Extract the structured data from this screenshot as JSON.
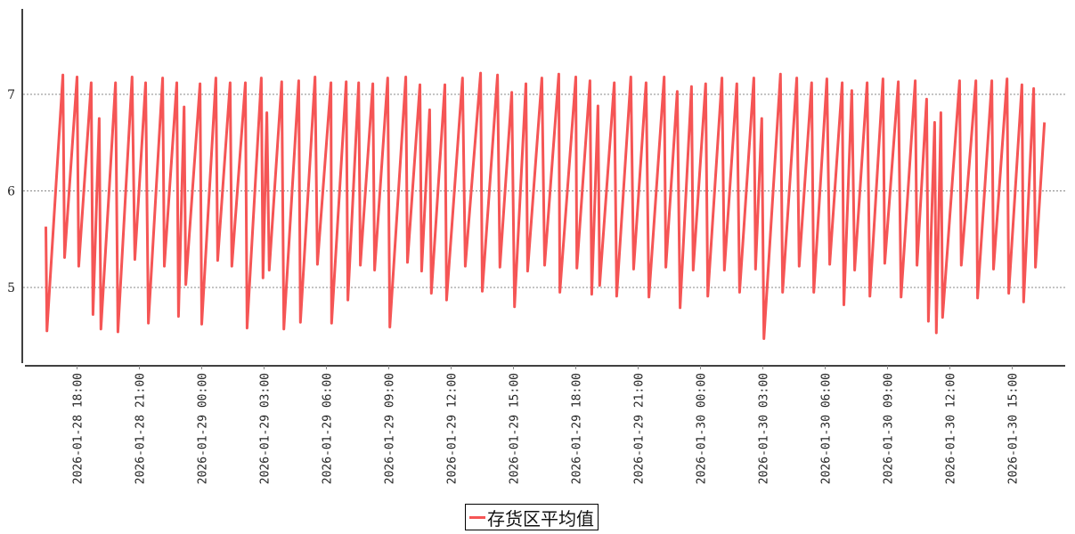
{
  "chart_data": {
    "type": "line",
    "title": "",
    "xlabel": "",
    "ylabel": "",
    "ylim": [
      4.2,
      7.88
    ],
    "xlim": [
      "2026-01-28 16:00",
      "2026-01-30 17:50"
    ],
    "grid": {
      "y": true,
      "x": false,
      "style": "dotted"
    },
    "legend_position": "bottom-center",
    "yticks": [
      "5",
      "6",
      "7"
    ],
    "xticks": [
      "2026-01-28 18:00",
      "2026-01-28 21:00",
      "2026-01-29 00:00",
      "2026-01-29 03:00",
      "2026-01-29 06:00",
      "2026-01-29 09:00",
      "2026-01-29 12:00",
      "2026-01-29 15:00",
      "2026-01-29 18:00",
      "2026-01-29 21:00",
      "2026-01-30 00:00",
      "2026-01-30 03:00",
      "2026-01-30 06:00",
      "2026-01-30 09:00",
      "2026-01-30 12:00",
      "2026-01-30 15:00"
    ],
    "series": [
      {
        "name": "存货区平均值",
        "color": "#f55555",
        "points": [
          [
            "2026-01-28 16:30",
            5.63
          ],
          [
            "2026-01-28 16:33",
            4.55
          ],
          [
            "2026-01-28 17:19",
            7.2
          ],
          [
            "2026-01-28 17:24",
            5.31
          ],
          [
            "2026-01-28 18:00",
            7.18
          ],
          [
            "2026-01-28 18:05",
            5.22
          ],
          [
            "2026-01-28 18:41",
            7.12
          ],
          [
            "2026-01-28 18:46",
            4.72
          ],
          [
            "2026-01-28 19:04",
            6.75
          ],
          [
            "2026-01-28 19:09",
            4.57
          ],
          [
            "2026-01-28 19:51",
            7.12
          ],
          [
            "2026-01-28 19:58",
            4.54
          ],
          [
            "2026-01-28 20:39",
            7.18
          ],
          [
            "2026-01-28 20:47",
            5.29
          ],
          [
            "2026-01-28 21:18",
            7.12
          ],
          [
            "2026-01-28 21:26",
            4.63
          ],
          [
            "2026-01-28 22:07",
            7.17
          ],
          [
            "2026-01-28 22:12",
            5.22
          ],
          [
            "2026-01-28 22:48",
            7.12
          ],
          [
            "2026-01-28 22:53",
            4.7
          ],
          [
            "2026-01-28 23:09",
            6.87
          ],
          [
            "2026-01-28 23:14",
            5.03
          ],
          [
            "2026-01-28 23:55",
            7.11
          ],
          [
            "2026-01-29 00:00",
            4.62
          ],
          [
            "2026-01-29 00:41",
            7.17
          ],
          [
            "2026-01-29 00:46",
            5.28
          ],
          [
            "2026-01-29 01:22",
            7.12
          ],
          [
            "2026-01-29 01:27",
            5.22
          ],
          [
            "2026-01-29 02:06",
            7.12
          ],
          [
            "2026-01-29 02:11",
            4.58
          ],
          [
            "2026-01-29 02:52",
            7.17
          ],
          [
            "2026-01-29 02:57",
            5.1
          ],
          [
            "2026-01-29 03:08",
            6.81
          ],
          [
            "2026-01-29 03:15",
            5.18
          ],
          [
            "2026-01-29 03:51",
            7.13
          ],
          [
            "2026-01-29 03:57",
            4.57
          ],
          [
            "2026-01-29 04:40",
            7.14
          ],
          [
            "2026-01-29 04:45",
            4.64
          ],
          [
            "2026-01-29 05:27",
            7.18
          ],
          [
            "2026-01-29 05:34",
            5.24
          ],
          [
            "2026-01-29 06:13",
            7.12
          ],
          [
            "2026-01-29 06:15",
            4.63
          ],
          [
            "2026-01-29 06:57",
            7.13
          ],
          [
            "2026-01-29 07:02",
            4.87
          ],
          [
            "2026-01-29 07:33",
            7.12
          ],
          [
            "2026-01-29 07:38",
            5.23
          ],
          [
            "2026-01-29 08:14",
            7.11
          ],
          [
            "2026-01-29 08:19",
            5.18
          ],
          [
            "2026-01-29 08:57",
            7.17
          ],
          [
            "2026-01-29 09:03",
            4.59
          ],
          [
            "2026-01-29 09:49",
            7.18
          ],
          [
            "2026-01-29 09:54",
            5.26
          ],
          [
            "2026-01-29 10:30",
            7.1
          ],
          [
            "2026-01-29 10:35",
            5.17
          ],
          [
            "2026-01-29 10:58",
            6.84
          ],
          [
            "2026-01-29 11:03",
            4.94
          ],
          [
            "2026-01-29 11:42",
            7.1
          ],
          [
            "2026-01-29 11:47",
            4.87
          ],
          [
            "2026-01-29 12:33",
            7.17
          ],
          [
            "2026-01-29 12:41",
            5.22
          ],
          [
            "2026-01-29 13:25",
            7.22
          ],
          [
            "2026-01-29 13:30",
            4.96
          ],
          [
            "2026-01-29 14:14",
            7.2
          ],
          [
            "2026-01-29 14:21",
            5.21
          ],
          [
            "2026-01-29 14:55",
            7.02
          ],
          [
            "2026-01-29 15:03",
            4.8
          ],
          [
            "2026-01-29 15:36",
            7.11
          ],
          [
            "2026-01-29 15:41",
            5.17
          ],
          [
            "2026-01-29 16:22",
            7.17
          ],
          [
            "2026-01-29 16:30",
            5.23
          ],
          [
            "2026-01-29 17:11",
            7.21
          ],
          [
            "2026-01-29 17:14",
            4.95
          ],
          [
            "2026-01-29 18:00",
            7.18
          ],
          [
            "2026-01-29 18:03",
            5.2
          ],
          [
            "2026-01-29 18:41",
            7.14
          ],
          [
            "2026-01-29 18:46",
            4.93
          ],
          [
            "2026-01-29 19:04",
            6.88
          ],
          [
            "2026-01-29 19:09",
            5.02
          ],
          [
            "2026-01-29 19:51",
            7.12
          ],
          [
            "2026-01-29 19:58",
            4.91
          ],
          [
            "2026-01-29 20:39",
            7.18
          ],
          [
            "2026-01-29 20:47",
            5.19
          ],
          [
            "2026-01-29 21:23",
            7.12
          ],
          [
            "2026-01-29 21:31",
            4.9
          ],
          [
            "2026-01-29 22:15",
            7.18
          ],
          [
            "2026-01-29 22:20",
            5.21
          ],
          [
            "2026-01-29 22:53",
            7.03
          ],
          [
            "2026-01-29 23:01",
            4.79
          ],
          [
            "2026-01-29 23:34",
            7.08
          ],
          [
            "2026-01-29 23:39",
            5.18
          ],
          [
            "2026-01-30 00:15",
            7.11
          ],
          [
            "2026-01-30 00:21",
            4.91
          ],
          [
            "2026-01-30 01:02",
            7.17
          ],
          [
            "2026-01-30 01:09",
            5.18
          ],
          [
            "2026-01-30 01:45",
            7.11
          ],
          [
            "2026-01-30 01:53",
            4.95
          ],
          [
            "2026-01-30 02:34",
            7.17
          ],
          [
            "2026-01-30 02:39",
            5.19
          ],
          [
            "2026-01-30 02:57",
            6.75
          ],
          [
            "2026-01-30 03:03",
            4.47
          ],
          [
            "2026-01-30 03:51",
            7.21
          ],
          [
            "2026-01-30 03:57",
            4.95
          ],
          [
            "2026-01-30 04:38",
            7.17
          ],
          [
            "2026-01-30 04:45",
            5.22
          ],
          [
            "2026-01-30 05:21",
            7.12
          ],
          [
            "2026-01-30 05:27",
            4.95
          ],
          [
            "2026-01-30 06:05",
            7.16
          ],
          [
            "2026-01-30 06:13",
            5.24
          ],
          [
            "2026-01-30 06:49",
            7.12
          ],
          [
            "2026-01-30 06:54",
            4.82
          ],
          [
            "2026-01-30 07:17",
            7.04
          ],
          [
            "2026-01-30 07:25",
            5.18
          ],
          [
            "2026-01-30 08:01",
            7.12
          ],
          [
            "2026-01-30 08:09",
            4.91
          ],
          [
            "2026-01-30 08:47",
            7.16
          ],
          [
            "2026-01-30 08:52",
            5.25
          ],
          [
            "2026-01-30 09:31",
            7.13
          ],
          [
            "2026-01-30 09:39",
            4.9
          ],
          [
            "2026-01-30 10:20",
            7.14
          ],
          [
            "2026-01-30 10:25",
            5.23
          ],
          [
            "2026-01-30 10:53",
            6.95
          ],
          [
            "2026-01-30 10:58",
            4.65
          ],
          [
            "2026-01-30 11:16",
            6.71
          ],
          [
            "2026-01-30 11:21",
            4.53
          ],
          [
            "2026-01-30 11:34",
            6.81
          ],
          [
            "2026-01-30 11:39",
            4.69
          ],
          [
            "2026-01-30 12:28",
            7.14
          ],
          [
            "2026-01-30 12:33",
            5.23
          ],
          [
            "2026-01-30 13:15",
            7.14
          ],
          [
            "2026-01-30 13:20",
            4.89
          ],
          [
            "2026-01-30 14:01",
            7.14
          ],
          [
            "2026-01-30 14:06",
            5.19
          ],
          [
            "2026-01-30 14:45",
            7.16
          ],
          [
            "2026-01-30 14:50",
            4.94
          ],
          [
            "2026-01-30 15:28",
            7.1
          ],
          [
            "2026-01-30 15:33",
            4.85
          ],
          [
            "2026-01-30 16:02",
            7.06
          ],
          [
            "2026-01-30 16:07",
            5.21
          ],
          [
            "2026-01-30 16:33",
            6.71
          ]
        ]
      }
    ]
  },
  "legend": {
    "label": "存货区平均值",
    "color": "#f55555"
  }
}
